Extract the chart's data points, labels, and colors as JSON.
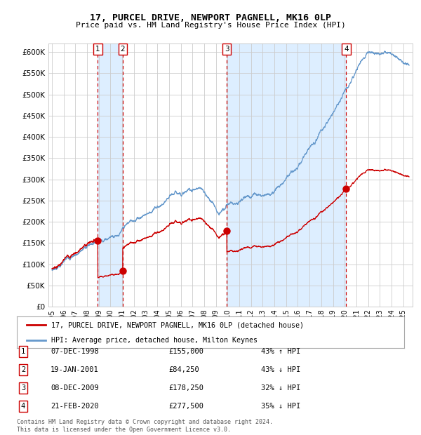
{
  "title": "17, PURCEL DRIVE, NEWPORT PAGNELL, MK16 0LP",
  "subtitle": "Price paid vs. HM Land Registry's House Price Index (HPI)",
  "legend_line1": "17, PURCEL DRIVE, NEWPORT PAGNELL, MK16 0LP (detached house)",
  "legend_line2": "HPI: Average price, detached house, Milton Keynes",
  "footer_line1": "Contains HM Land Registry data © Crown copyright and database right 2024.",
  "footer_line2": "This data is licensed under the Open Government Licence v3.0.",
  "transactions": [
    {
      "num": 1,
      "date": "07-DEC-1998",
      "price": 155000,
      "pct": "43%",
      "dir": "↑",
      "year": 1998.92
    },
    {
      "num": 2,
      "date": "19-JAN-2001",
      "price": 84250,
      "pct": "43%",
      "dir": "↓",
      "year": 2001.05
    },
    {
      "num": 3,
      "date": "08-DEC-2009",
      "price": 178250,
      "pct": "32%",
      "dir": "↓",
      "year": 2009.93
    },
    {
      "num": 4,
      "date": "21-FEB-2020",
      "price": 277500,
      "pct": "35%",
      "dir": "↓",
      "year": 2020.13
    }
  ],
  "red_line_color": "#cc0000",
  "blue_line_color": "#6699cc",
  "shade_color": "#ddeeff",
  "dashed_color": "#cc0000",
  "grid_color": "#cccccc",
  "bg_color": "#ffffff",
  "ylim": [
    0,
    620000
  ],
  "yticks": [
    0,
    50000,
    100000,
    150000,
    200000,
    250000,
    300000,
    350000,
    400000,
    450000,
    500000,
    550000,
    600000
  ],
  "xlim_start": 1994.7,
  "xlim_end": 2025.8
}
